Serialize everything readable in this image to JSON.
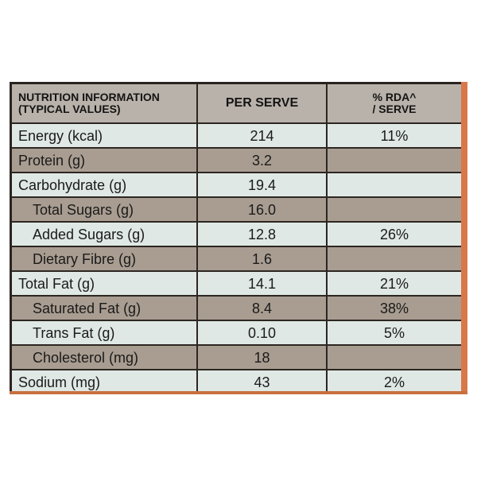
{
  "table": {
    "headers": {
      "nutrient_line1": "NUTRITION INFORMATION",
      "nutrient_line2": "(TYPICAL VALUES)",
      "per_serve": "PER SERVE",
      "rda_line1": "% RDA^",
      "rda_line2": "/ SERVE"
    },
    "rows": [
      {
        "nutrient": "Energy (kcal)",
        "per_serve": "214",
        "rda": "11%"
      },
      {
        "nutrient": "Protein (g)",
        "per_serve": "3.2",
        "rda": ""
      },
      {
        "nutrient": "Carbohydrate (g)",
        "per_serve": "19.4",
        "rda": ""
      },
      {
        "nutrient": "Total Sugars (g)",
        "per_serve": "16.0",
        "rda": ""
      },
      {
        "nutrient": "Added Sugars (g)",
        "per_serve": "12.8",
        "rda": "26%"
      },
      {
        "nutrient": "Dietary Fibre (g)",
        "per_serve": "1.6",
        "rda": ""
      },
      {
        "nutrient": "Total Fat (g)",
        "per_serve": "14.1",
        "rda": "21%"
      },
      {
        "nutrient": "Saturated Fat (g)",
        "per_serve": "8.4",
        "rda": "38%"
      },
      {
        "nutrient": "Trans Fat (g)",
        "per_serve": "0.10",
        "rda": "5%"
      },
      {
        "nutrient": "Cholesterol (mg)",
        "per_serve": "18",
        "rda": ""
      },
      {
        "nutrient": "Sodium (mg)",
        "per_serve": "43",
        "rda": "2%"
      }
    ]
  },
  "colors": {
    "light_row": "#dfe8e5",
    "dark_row": "#a99d91",
    "header_row": "#b9b2aa",
    "border": "#2c2622",
    "packaging_orange": "#d8784a"
  }
}
